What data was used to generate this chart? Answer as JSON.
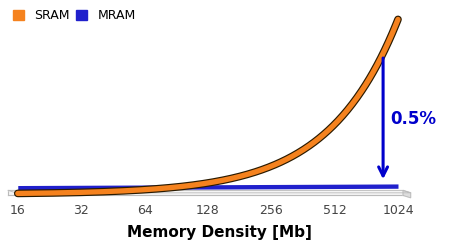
{
  "x_ticks": [
    16,
    32,
    64,
    128,
    256,
    512,
    1024
  ],
  "x_tick_labels": [
    "16",
    "32",
    "64",
    "128",
    "256",
    "512",
    "1024"
  ],
  "sram_color": "#F5821E",
  "sram_outline_color": "#2a1a00",
  "mram_color": "#2020CC",
  "arrow_color": "#0000CC",
  "annotation_text": "0.5%",
  "annotation_color": "#0000CC",
  "xlabel": "Memory Density [Mb]",
  "xlabel_fontsize": 11,
  "legend_sram": "SRAM",
  "legend_mram": "MRAM",
  "legend_fontsize": 9,
  "background_color": "#ffffff",
  "platform_top_color": "#f5f5f5",
  "platform_edge_color": "#bbbbbb",
  "platform_side_color": "#dddddd"
}
